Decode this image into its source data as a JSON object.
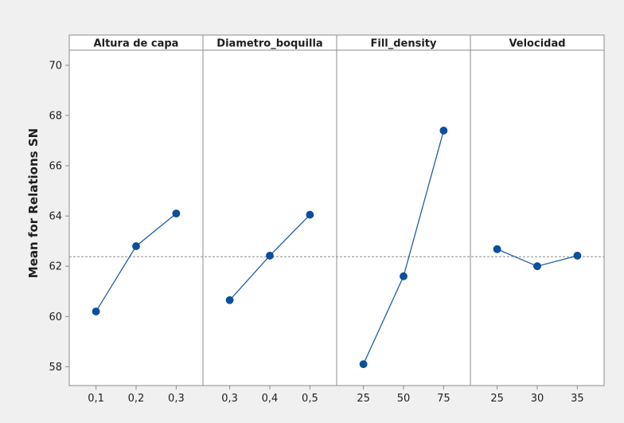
{
  "chart_data": {
    "type": "line",
    "ylabel": "Mean for Relations SN",
    "ylim": [
      57.25,
      70.6
    ],
    "yticks": [
      58,
      60,
      62,
      64,
      66,
      68,
      70
    ],
    "reference_line": 62.38,
    "grid": false,
    "colors": {
      "marker": "#0a50a1",
      "line": "#1f5fa8",
      "frame": "#8c8c8c",
      "reference": "#8c8c8c",
      "plot_bg": "#ffffff",
      "page_bg": "#f0f0f0",
      "header_bg": "#ffffff"
    },
    "panels": [
      {
        "title": "Altura de capa",
        "x": [
          "0,1",
          "0,2",
          "0,3"
        ],
        "values": [
          60.2,
          62.8,
          64.1
        ]
      },
      {
        "title": "Diametro_boquilla",
        "x": [
          "0,3",
          "0,4",
          "0,5"
        ],
        "values": [
          60.65,
          62.42,
          64.05
        ]
      },
      {
        "title": "Fill_density",
        "x": [
          "25",
          "50",
          "75"
        ],
        "values": [
          58.1,
          61.6,
          67.4
        ]
      },
      {
        "title": "Velocidad",
        "x": [
          "25",
          "30",
          "35"
        ],
        "values": [
          62.68,
          62.0,
          62.42
        ]
      }
    ]
  }
}
